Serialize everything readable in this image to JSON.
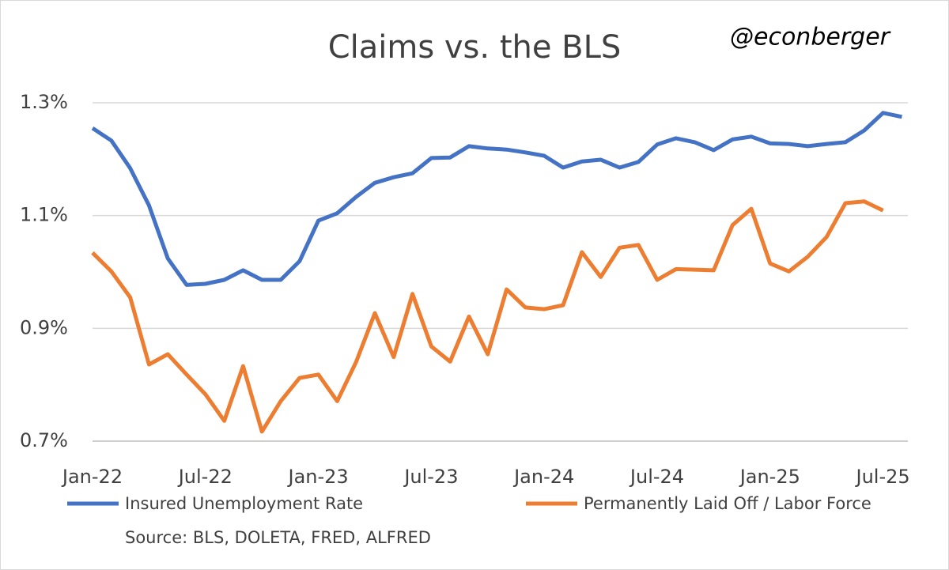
{
  "chart_data": {
    "type": "line",
    "title": "Claims vs. the BLS",
    "annotation": "@econberger",
    "source": "Source: BLS, DOLETA, FRED, ALFRED",
    "categories": [
      "Jan-22",
      null,
      null,
      null,
      null,
      null,
      "Jul-22",
      null,
      null,
      null,
      null,
      null,
      "Jan-23",
      null,
      null,
      null,
      null,
      null,
      "Jul-23",
      null,
      null,
      null,
      null,
      null,
      "Jan-24",
      null,
      null,
      null,
      null,
      null,
      "Jul-24",
      null,
      null,
      null,
      null,
      null,
      "Jan-25",
      null,
      null,
      null,
      null,
      null,
      "Jul-25",
      null
    ],
    "series": [
      {
        "name": "Insured Unemployment Rate",
        "color": "#4472c4",
        "values": [
          1.255,
          1.233,
          1.184,
          1.118,
          1.024,
          0.977,
          0.979,
          0.986,
          1.003,
          0.986,
          0.986,
          1.019,
          1.091,
          1.104,
          1.133,
          1.158,
          1.168,
          1.175,
          1.202,
          1.203,
          1.223,
          1.219,
          1.217,
          1.212,
          1.206,
          1.185,
          1.196,
          1.199,
          1.185,
          1.195,
          1.226,
          1.237,
          1.23,
          1.216,
          1.235,
          1.24,
          1.228,
          1.227,
          1.223,
          1.227,
          1.23,
          1.251,
          1.282,
          1.275
        ]
      },
      {
        "name": "Permanently Laid Off / Labor Force",
        "color": "#ed7d31",
        "values": [
          1.034,
          1.001,
          0.955,
          0.836,
          0.854,
          0.818,
          0.783,
          0.736,
          0.833,
          0.717,
          0.771,
          0.812,
          0.818,
          0.771,
          0.84,
          0.927,
          0.849,
          0.961,
          0.868,
          0.841,
          0.921,
          0.854,
          0.969,
          0.937,
          0.934,
          0.941,
          1.035,
          0.991,
          1.043,
          1.048,
          0.986,
          1.005,
          1.004,
          1.003,
          1.083,
          1.112,
          1.015,
          1.001,
          1.027,
          1.062,
          1.122,
          1.125,
          1.109,
          null
        ]
      }
    ],
    "ylim": [
      0.7,
      1.3
    ],
    "yticks": [
      {
        "value": 0.7,
        "label": "0.7%"
      },
      {
        "value": 0.9,
        "label": "0.9%"
      },
      {
        "value": 1.1,
        "label": "1.1%"
      },
      {
        "value": 1.3,
        "label": "1.3%"
      }
    ],
    "grid": true,
    "legend": "bottom"
  }
}
